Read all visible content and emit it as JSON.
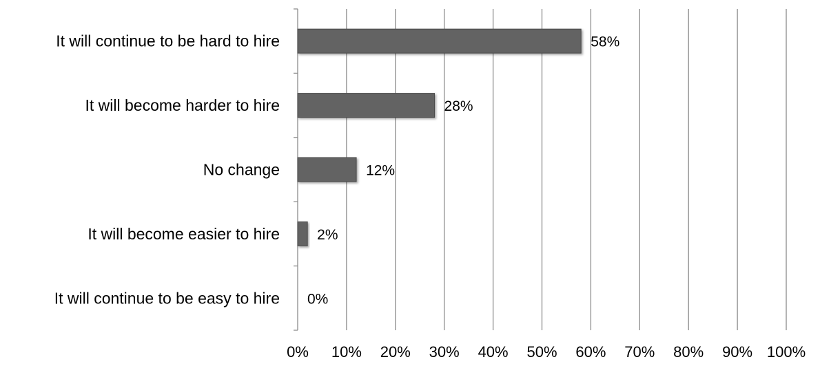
{
  "chart_data": {
    "type": "bar",
    "orientation": "horizontal",
    "categories": [
      "It will continue to be hard to hire",
      "It will become harder to hire",
      "No change",
      "It will become easier to hire",
      "It will continue to be easy to hire"
    ],
    "values": [
      58,
      28,
      12,
      2,
      0
    ],
    "data_labels": [
      "58%",
      "28%",
      "12%",
      "2%",
      "0%"
    ],
    "x_ticks": [
      0,
      10,
      20,
      30,
      40,
      50,
      60,
      70,
      80,
      90,
      100
    ],
    "x_tick_labels": [
      "0%",
      "10%",
      "20%",
      "30%",
      "40%",
      "50%",
      "60%",
      "70%",
      "80%",
      "90%",
      "100%"
    ],
    "xlim": [
      0,
      100
    ],
    "grid": "vertical",
    "legend": "none",
    "title": "",
    "xlabel": "",
    "ylabel": "",
    "colors": {
      "bar": "#636363",
      "bar_edge": "#4a4a4a",
      "grid": "#8c8c8c",
      "axis": "#8c8c8c"
    }
  }
}
